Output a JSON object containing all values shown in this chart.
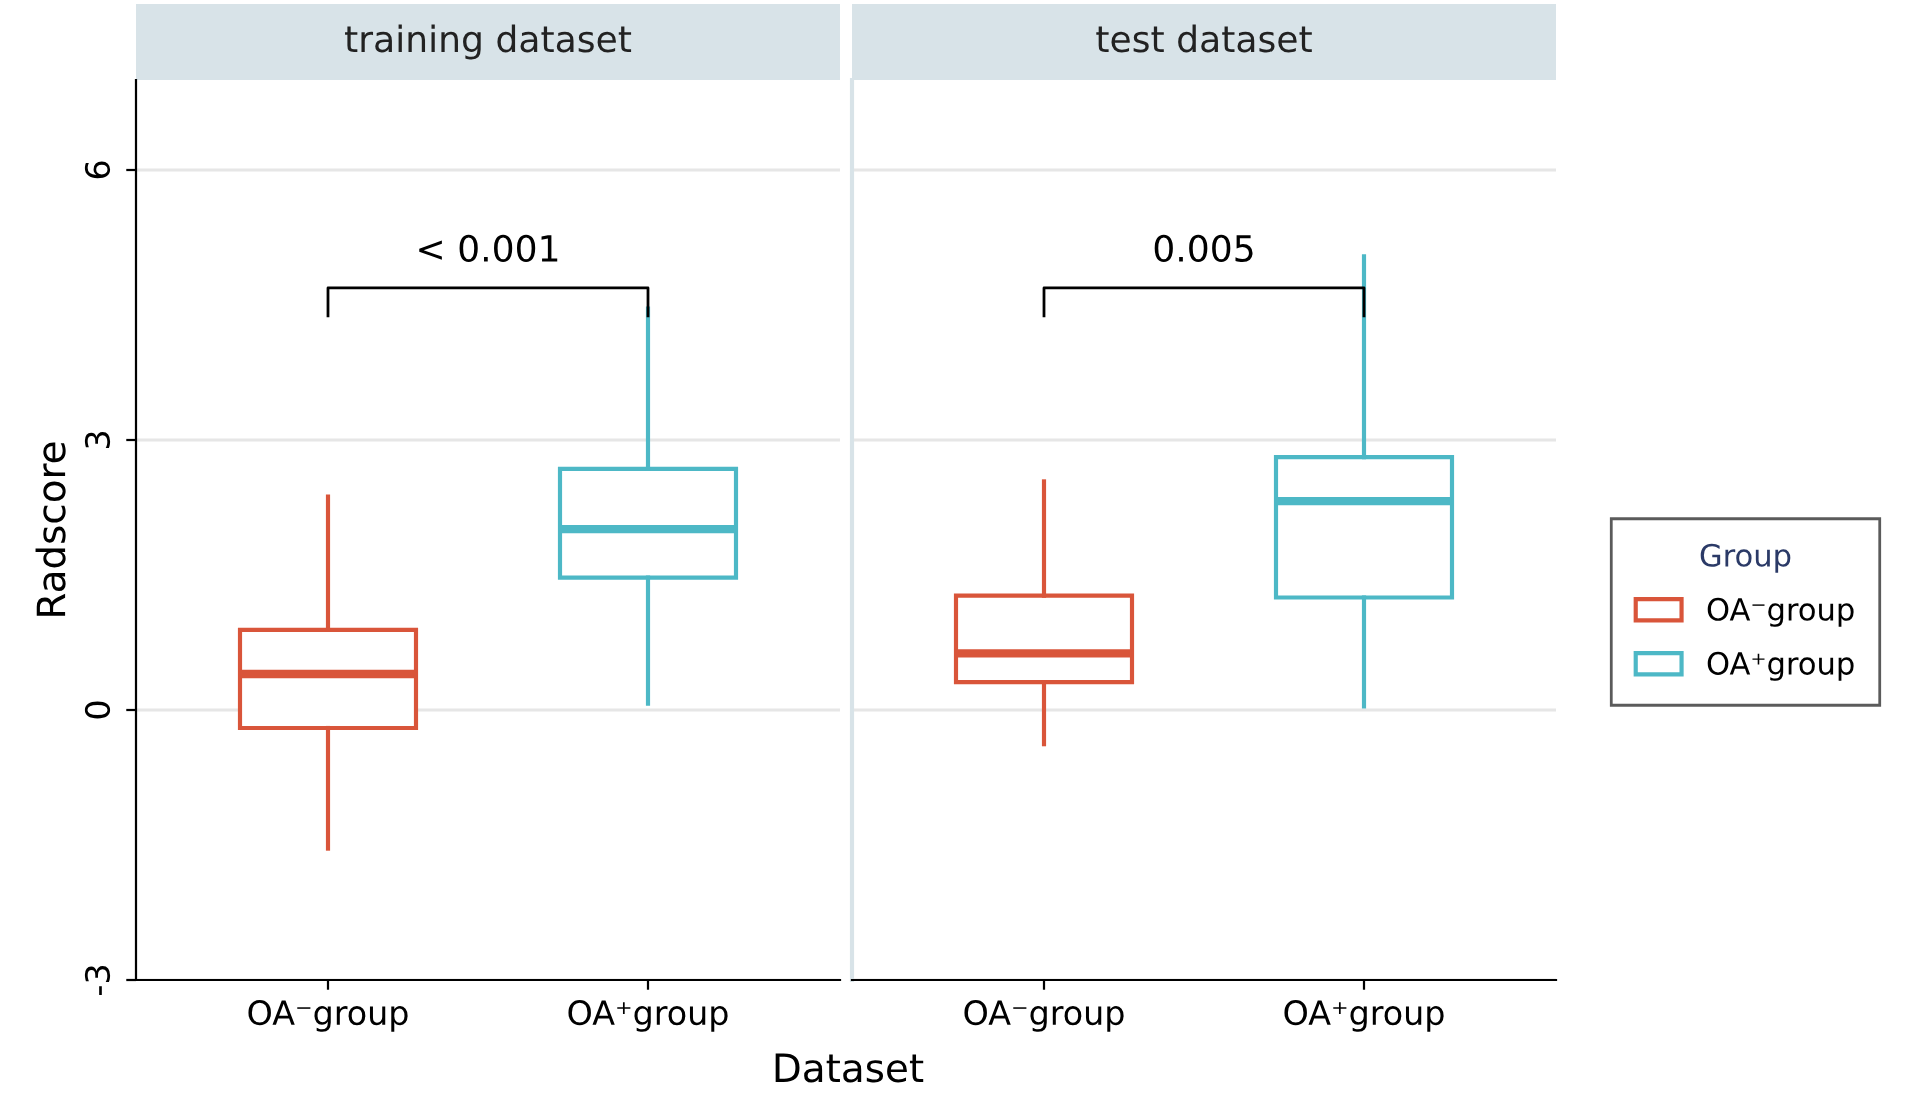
{
  "chart_data": [
    {
      "type": "box",
      "title": "training dataset",
      "ylabel": "Radscore",
      "xlabel": "Dataset",
      "categories": [
        "OA⁻group",
        "OA⁺group"
      ],
      "series": [
        {
          "name": "OA⁻group",
          "color": "#d9553a",
          "boxes": [
            {
              "low": -1.54,
              "q1": -0.2,
              "median": 0.4,
              "q3": 0.89,
              "high": 2.37
            },
            null
          ]
        },
        {
          "name": "OA⁺group",
          "color": "#4db8c6",
          "boxes": [
            null,
            {
              "low": 0.07,
              "q1": 1.47,
              "median": 2.01,
              "q3": 2.68,
              "high": 4.46
            }
          ]
        }
      ],
      "ylim": [
        -3,
        7
      ],
      "yticks": [
        -3,
        0,
        3,
        6
      ],
      "grid": "y",
      "legend": "right",
      "legend_title": "Group",
      "annotations": [
        "< 0.001"
      ]
    },
    {
      "type": "box",
      "title": "test dataset",
      "categories": [
        "OA⁻group",
        "OA⁺group"
      ],
      "series": [
        {
          "color": "#d9553a",
          "boxes": [
            {
              "low": -0.38,
              "q1": 0.31,
              "median": 0.63,
              "q3": 1.27,
              "high": 2.54
            },
            null
          ]
        },
        {
          "color": "#4db8c6",
          "boxes": [
            null,
            {
              "low": 0.04,
              "q1": 1.25,
              "median": 2.32,
              "q3": 2.81,
              "high": 5.04
            }
          ]
        }
      ],
      "ylim": [
        -3,
        7
      ],
      "yticks": [
        -3,
        0,
        3,
        6
      ],
      "grid": "y",
      "tick_labels": "x",
      "annotations": [
        "0.005"
      ]
    }
  ]
}
